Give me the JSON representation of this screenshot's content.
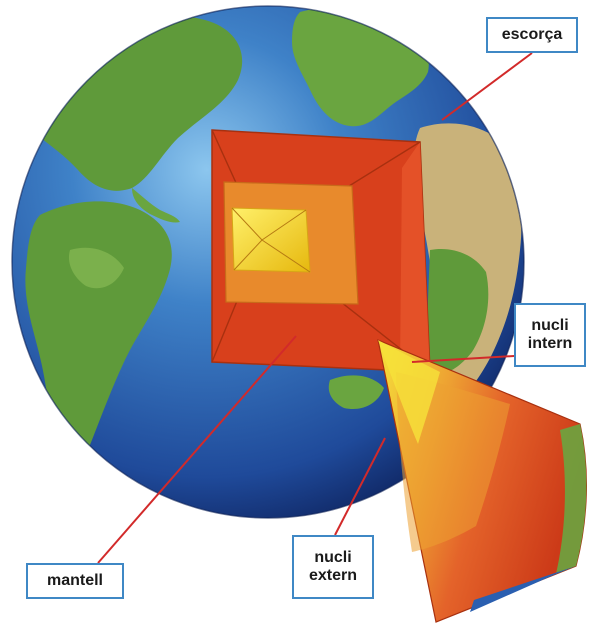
{
  "labels": {
    "crust": "escorça",
    "inner_core": [
      "nucli",
      "intern"
    ],
    "outer_core": [
      "nucli",
      "extern"
    ],
    "mantle": "mantell"
  },
  "colors": {
    "ocean_light": "#5aa3dc",
    "ocean_dark": "#15307a",
    "land": "#5f9a3a",
    "desert": "#c9b27a",
    "mantle": "#d8401c",
    "outer_core": "#e88a2c",
    "inner_core": "#f2d21c",
    "leader_line": "#d22a2a",
    "box_border": "#3f88c5"
  }
}
